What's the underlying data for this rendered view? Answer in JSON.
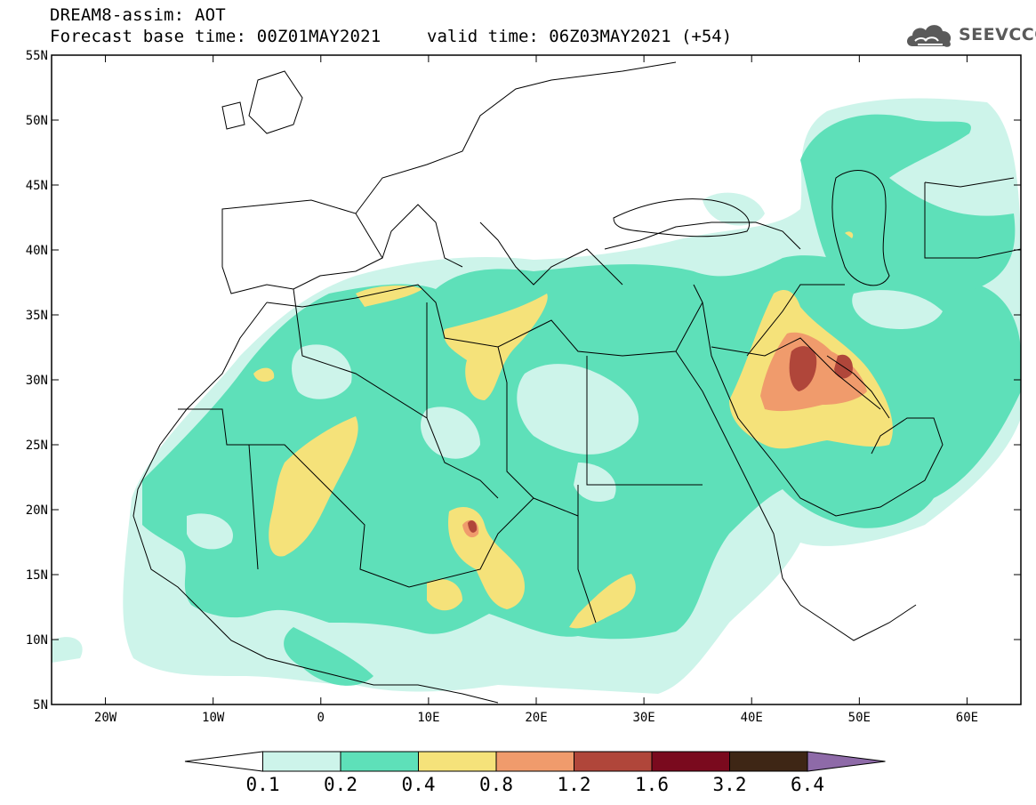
{
  "header": {
    "model": "DREAM8-assim: AOT",
    "base_time": "Forecast base time: 00Z01MAY2021",
    "valid_time": "valid time: 06Z03MAY2021 (+54)"
  },
  "logo": {
    "text": "SEEVCCC",
    "icon": "cloud-icon",
    "color": "#5a5a5a"
  },
  "map": {
    "lat_labels": [
      "55N",
      "50N",
      "45N",
      "40N",
      "35N",
      "30N",
      "25N",
      "20N",
      "15N",
      "10N",
      "5N"
    ],
    "lon_labels": [
      "20W",
      "10W",
      "0",
      "10E",
      "20E",
      "30E",
      "40E",
      "50E",
      "60E"
    ],
    "lat_range": [
      5,
      55
    ],
    "lon_range": [
      -25,
      65
    ],
    "grid": false,
    "coastline_color": "#000000"
  },
  "colorbar": {
    "tick_labels": [
      "0.1",
      "0.2",
      "0.4",
      "0.8",
      "1.2",
      "1.6",
      "3.2",
      "6.4"
    ],
    "colors": [
      "#ffffff",
      "#cdf4ea",
      "#5ee0b9",
      "#f5e27a",
      "#f09b6c",
      "#b0463a",
      "#7a0a1e",
      "#3e2615",
      "#8e6aa8"
    ]
  }
}
